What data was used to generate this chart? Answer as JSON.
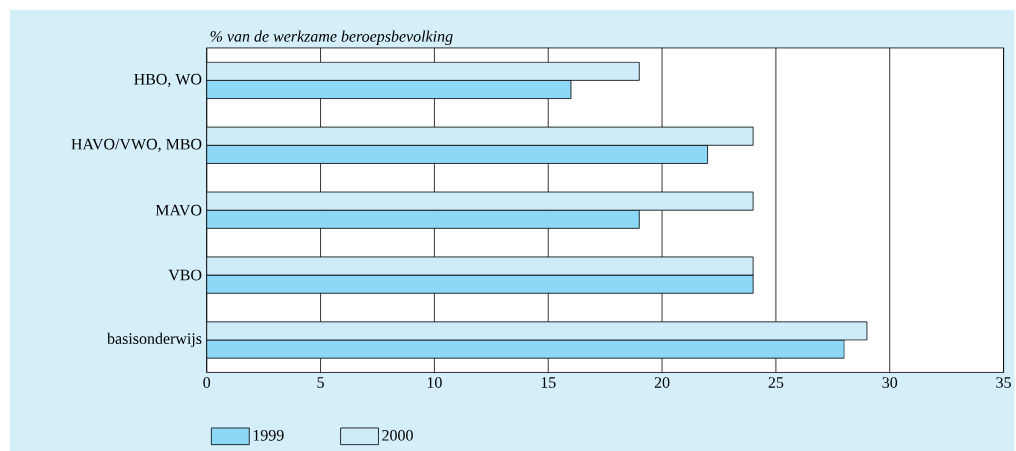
{
  "chart_data": {
    "type": "bar",
    "orientation": "horizontal",
    "xlabel": "*% van de werkzame beroepsbevolking*",
    "categories": [
      "HBO, WO",
      "HAVO/VWO, MBO",
      "MAVO",
      "VBO",
      "basisonderwijs"
    ],
    "series": [
      {
        "name": "1999",
        "color": "#8dd7f7",
        "values": [
          16,
          22,
          19,
          24,
          28
        ]
      },
      {
        "name": "2000",
        "color": "#cdebf9",
        "values": [
          19,
          24,
          24,
          24,
          29
        ]
      }
    ],
    "xlim": [
      0,
      35
    ],
    "xticks": [
      0,
      5,
      10,
      15,
      20,
      25,
      30,
      35
    ],
    "grid": "x",
    "legend": "bottom"
  }
}
